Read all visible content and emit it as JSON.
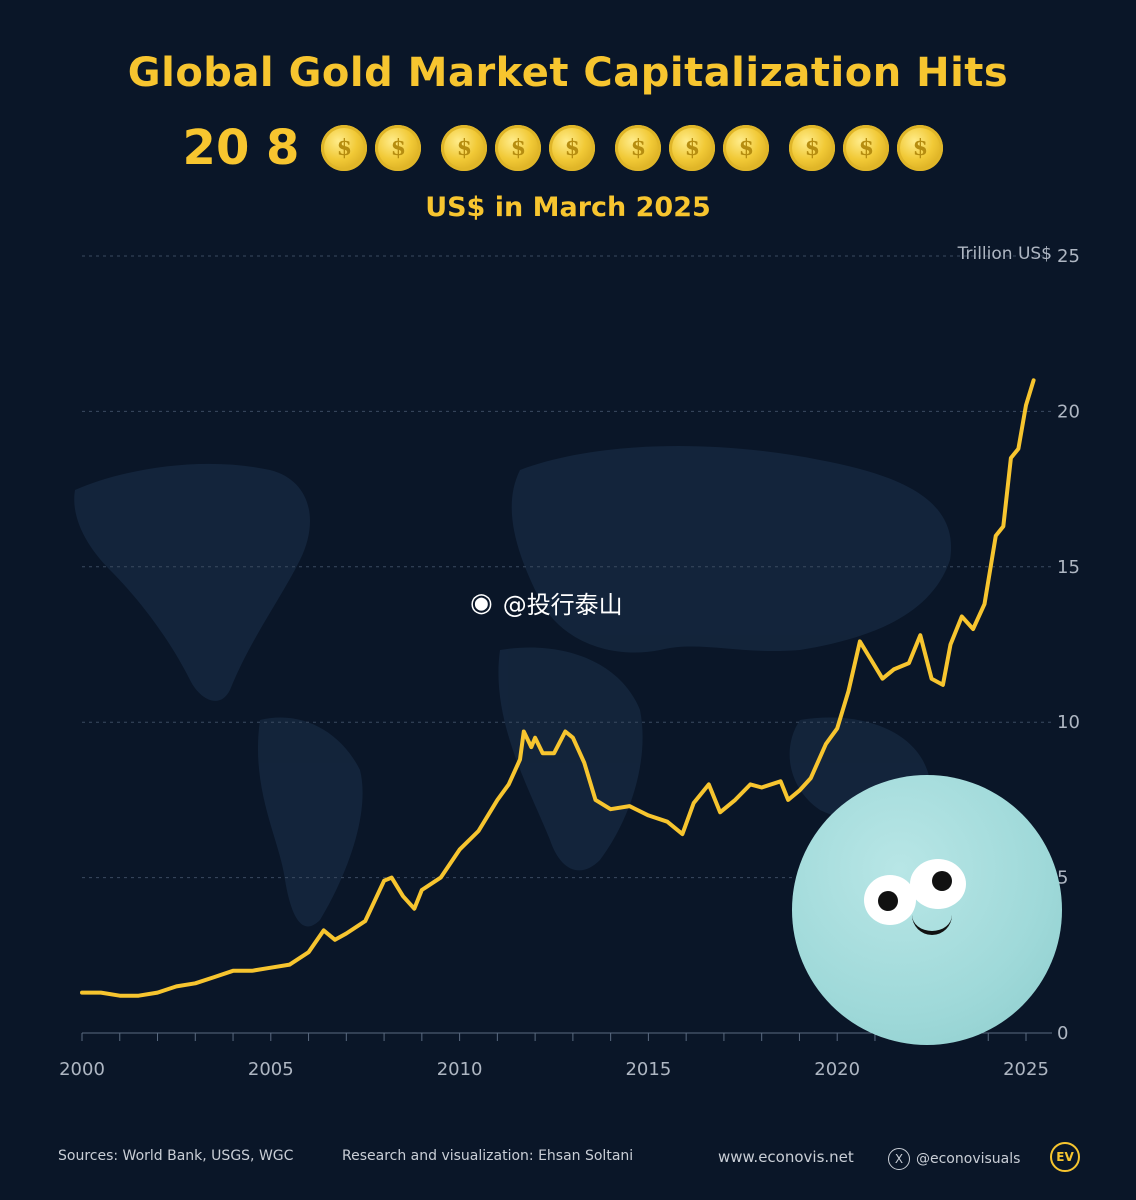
{
  "header": {
    "title": "Global Gold Market Capitalization Hits",
    "big_number": "20 8",
    "subtitle": "US$ in March 2025"
  },
  "watermark": "@投行泰山",
  "footer": {
    "sources": "Sources: World Bank, USGS, WGC",
    "research": "Research and visualization: Ehsan Soltani",
    "website": "www.econovis.net",
    "social": "@econovisuals",
    "logo": "EV"
  },
  "colors": {
    "background": "#0a1628",
    "accent": "#f7c52f",
    "grid": "#3a4a60",
    "axis_text": "#aeb6c2"
  },
  "chart_data": {
    "type": "line",
    "title": "Global Gold Market Capitalization",
    "ylabel": "Trillion US$",
    "xlabel": "",
    "xlim": [
      2000,
      2025.2
    ],
    "ylim": [
      0,
      25
    ],
    "x_ticks": [
      2000,
      2005,
      2010,
      2015,
      2020,
      2025
    ],
    "y_ticks": [
      0,
      5,
      10,
      15,
      20,
      25
    ],
    "series": [
      {
        "name": "Gold market cap",
        "x": [
          2000,
          2000.5,
          2001,
          2001.5,
          2002,
          2002.5,
          2003,
          2003.5,
          2004,
          2004.5,
          2005,
          2005.5,
          2006,
          2006.4,
          2006.7,
          2007,
          2007.5,
          2008,
          2008.2,
          2008.5,
          2008.8,
          2009,
          2009.5,
          2010,
          2010.5,
          2011,
          2011.3,
          2011.6,
          2011.7,
          2011.9,
          2012,
          2012.2,
          2012.5,
          2012.8,
          2013,
          2013.3,
          2013.6,
          2014,
          2014.5,
          2015,
          2015.5,
          2015.9,
          2016.2,
          2016.6,
          2016.9,
          2017.3,
          2017.7,
          2018,
          2018.5,
          2018.7,
          2019,
          2019.3,
          2019.7,
          2020,
          2020.3,
          2020.6,
          2020.9,
          2021.2,
          2021.5,
          2021.9,
          2022.2,
          2022.5,
          2022.8,
          2023,
          2023.3,
          2023.6,
          2023.9,
          2024.2,
          2024.4,
          2024.6,
          2024.8,
          2025,
          2025.2
        ],
        "values": [
          1.3,
          1.3,
          1.2,
          1.2,
          1.3,
          1.5,
          1.6,
          1.8,
          2.0,
          2.0,
          2.1,
          2.2,
          2.6,
          3.3,
          3.0,
          3.2,
          3.6,
          4.9,
          5.0,
          4.4,
          4.0,
          4.6,
          5.0,
          5.9,
          6.5,
          7.5,
          8.0,
          8.8,
          9.7,
          9.2,
          9.5,
          9.0,
          9.0,
          9.7,
          9.5,
          8.7,
          7.5,
          7.2,
          7.3,
          7.0,
          6.8,
          6.4,
          7.4,
          8.0,
          7.1,
          7.5,
          8.0,
          7.9,
          8.1,
          7.5,
          7.8,
          8.2,
          9.3,
          9.8,
          11.0,
          12.6,
          12.0,
          11.4,
          11.7,
          11.9,
          12.8,
          11.4,
          11.2,
          12.5,
          13.4,
          13.0,
          13.8,
          16.0,
          16.3,
          18.5,
          18.8,
          20.2,
          21.0
        ]
      }
    ]
  }
}
